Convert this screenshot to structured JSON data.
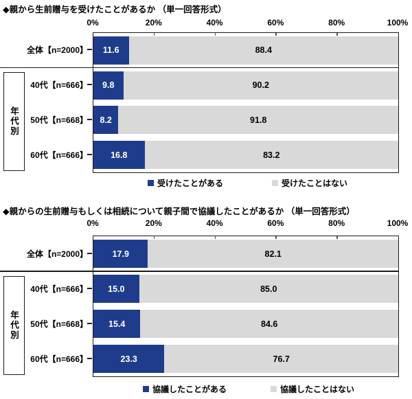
{
  "group_label": "年代別",
  "colors": {
    "bar_yes": "#1F3C8C",
    "bar_no": "#D9D9D9",
    "text_on_yes": "#FFFFFF",
    "text_on_no": "#000000",
    "border": "#1a1a1a"
  },
  "chart_data": [
    {
      "type": "bar",
      "orientation": "horizontal",
      "stacked": true,
      "title": "◆親から生前贈与を受けたことがあるか （単一回答形式）",
      "categories": [
        "全体【n=2000】",
        "40代【n=666】",
        "50代【n=668】",
        "60代【n=666】"
      ],
      "group": {
        "label": "年代別",
        "applies_to": [
          "40代【n=666】",
          "50代【n=668】",
          "60代【n=666】"
        ]
      },
      "series": [
        {
          "name": "受けたことがある",
          "color": "#1F3C8C",
          "values": [
            11.6,
            9.8,
            8.2,
            16.8
          ]
        },
        {
          "name": "受けたことはない",
          "color": "#D9D9D9",
          "values": [
            88.4,
            90.2,
            91.8,
            83.2
          ]
        }
      ],
      "xlim": [
        0,
        100
      ],
      "x_ticks": [
        "0%",
        "20%",
        "40%",
        "60%",
        "80%",
        "100%"
      ],
      "legend_position": "bottom",
      "grid": false
    },
    {
      "type": "bar",
      "orientation": "horizontal",
      "stacked": true,
      "title": "◆親からの生前贈与もしくは相続について親子間で協議したことがあるか （単一回答形式）",
      "categories": [
        "全体【n=2000】",
        "40代【n=666】",
        "50代【n=668】",
        "60代【n=666】"
      ],
      "group": {
        "label": "年代別",
        "applies_to": [
          "40代【n=666】",
          "50代【n=668】",
          "60代【n=666】"
        ]
      },
      "series": [
        {
          "name": "協議したことがある",
          "color": "#1F3C8C",
          "values": [
            17.9,
            15.0,
            15.4,
            23.3
          ]
        },
        {
          "name": "協議したことはない",
          "color": "#D9D9D9",
          "values": [
            82.1,
            85.0,
            84.6,
            76.7
          ]
        }
      ],
      "xlim": [
        0,
        100
      ],
      "x_ticks": [
        "0%",
        "20%",
        "40%",
        "60%",
        "80%",
        "100%"
      ],
      "legend_position": "bottom",
      "grid": false
    }
  ]
}
